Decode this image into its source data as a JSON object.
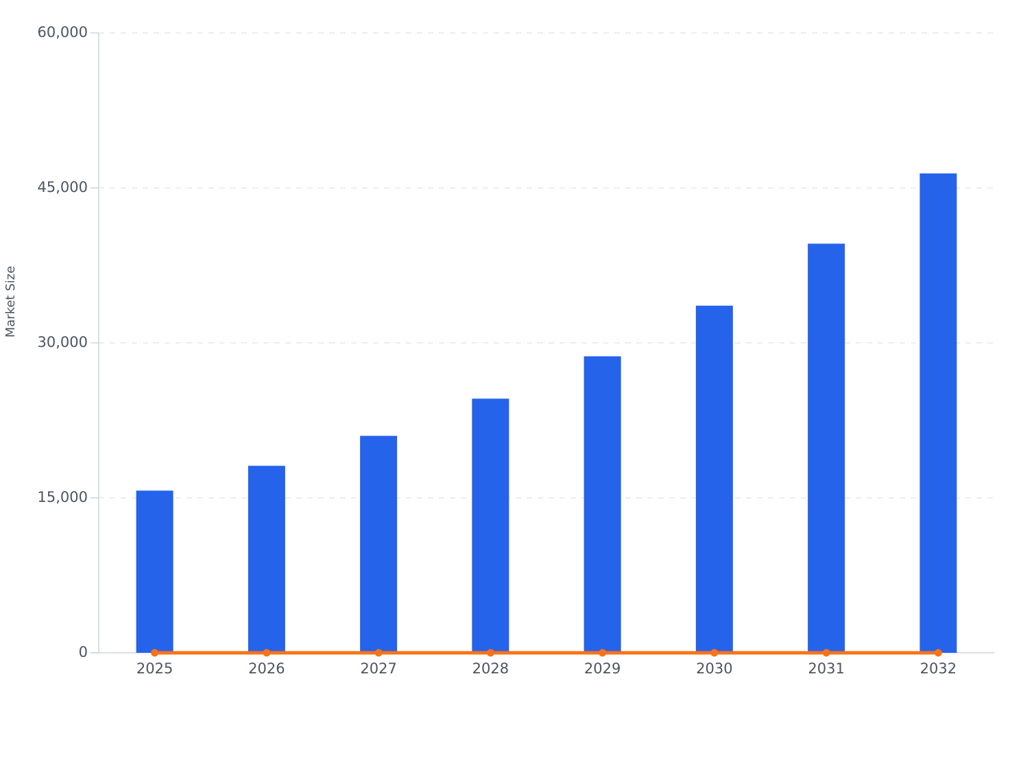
{
  "chart_data": {
    "type": "bar",
    "y_label": "Market Size",
    "categories": [
      "2025",
      "2026",
      "2027",
      "2028",
      "2029",
      "2030",
      "2031",
      "2032"
    ],
    "series": [
      {
        "type": "bar",
        "color": "#2563eb",
        "values": [
          15700,
          18100,
          21000,
          24600,
          28700,
          33600,
          39600,
          46400
        ]
      },
      {
        "type": "line",
        "color": "#f97316",
        "values": [
          0,
          0,
          0,
          0,
          0,
          0,
          0,
          0
        ]
      }
    ],
    "ylim": [
      0,
      60000
    ],
    "yticks": [
      0,
      {
        "value": 15000,
        "label": "15,000"
      },
      {
        "value": 30000,
        "label": "30,000"
      },
      {
        "value": 45000,
        "label": "45,000"
      },
      {
        "value": 60000,
        "label": "60,000"
      }
    ],
    "grid": true
  }
}
